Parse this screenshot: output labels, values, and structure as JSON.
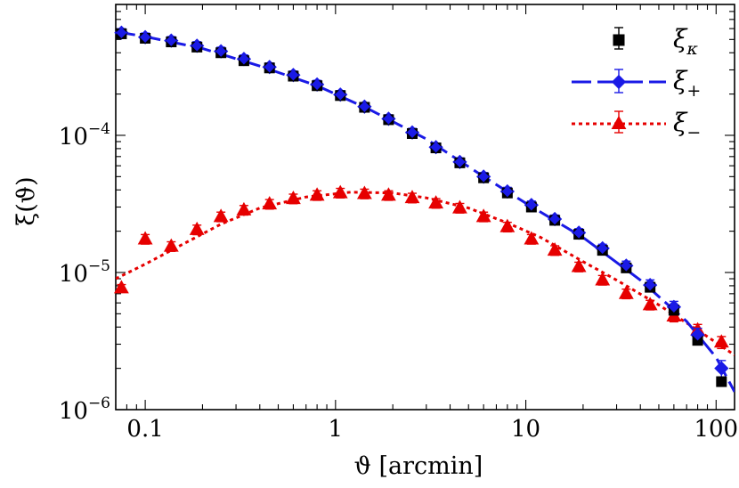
{
  "chart_data": {
    "type": "scatter",
    "xlabel": "ϑ [arcmin]",
    "ylabel": "ξ(ϑ)",
    "xscale": "log",
    "yscale": "log",
    "xlim": [
      0.07,
      125
    ],
    "ylim": [
      1e-06,
      0.0009
    ],
    "x_ticks": [
      {
        "value": 0.1,
        "label": "0.1"
      },
      {
        "value": 1,
        "label": "1"
      },
      {
        "value": 10,
        "label": "10"
      },
      {
        "value": 100,
        "label": "100"
      }
    ],
    "y_ticks": [
      {
        "value": 1e-06,
        "base": "10",
        "exp": "−6"
      },
      {
        "value": 1e-05,
        "base": "10",
        "exp": "−5"
      },
      {
        "value": 0.0001,
        "base": "10",
        "exp": "−4"
      }
    ],
    "legend": {
      "position": "top-right",
      "entries": [
        {
          "key": "kappa",
          "base": "ξ",
          "sub": "κ"
        },
        {
          "key": "plus",
          "base": "ξ",
          "sub": "+"
        },
        {
          "key": "minus",
          "base": "ξ",
          "sub": "−"
        }
      ]
    },
    "series": [
      {
        "key": "kappa",
        "name": "ξκ",
        "marker": "square",
        "color": "#000000",
        "x": [
          0.075,
          0.1,
          0.137,
          0.187,
          0.25,
          0.33,
          0.45,
          0.6,
          0.8,
          1.06,
          1.42,
          1.9,
          2.53,
          3.37,
          4.5,
          6.0,
          8.0,
          10.7,
          14.2,
          19.0,
          25.3,
          33.7,
          45.0,
          60.0,
          80.0,
          106.7
        ],
        "y": [
          0.00055,
          0.00051,
          0.00048,
          0.00044,
          0.0004,
          0.00035,
          0.00031,
          0.00027,
          0.00023,
          0.000195,
          0.00016,
          0.00013,
          0.000103,
          8.1e-05,
          6.3e-05,
          4.9e-05,
          3.8e-05,
          3e-05,
          2.4e-05,
          1.9e-05,
          1.45e-05,
          1.08e-05,
          7.8e-06,
          5.3e-06,
          3.2e-06,
          1.6e-06
        ]
      },
      {
        "key": "plus",
        "name": "ξ+",
        "marker": "diamond",
        "color": "#1a1ae6",
        "x": [
          0.075,
          0.1,
          0.137,
          0.187,
          0.25,
          0.33,
          0.45,
          0.6,
          0.8,
          1.06,
          1.42,
          1.9,
          2.53,
          3.37,
          4.5,
          6.0,
          8.0,
          10.7,
          14.2,
          19.0,
          25.3,
          33.7,
          45.0,
          60.0,
          80.0,
          106.7
        ],
        "y": [
          0.00056,
          0.00052,
          0.00049,
          0.00045,
          0.00041,
          0.00036,
          0.000315,
          0.000275,
          0.000235,
          0.000198,
          0.000162,
          0.000132,
          0.000105,
          8.2e-05,
          6.4e-05,
          5e-05,
          3.9e-05,
          3.1e-05,
          2.45e-05,
          1.95e-05,
          1.5e-05,
          1.12e-05,
          8.1e-06,
          5.6e-06,
          3.5e-06,
          2e-06
        ],
        "err": [
          0.07,
          0.07,
          0.07,
          0.07,
          0.07,
          0.07,
          0.07,
          0.07,
          0.07,
          0.07,
          0.07,
          0.07,
          0.07,
          0.07,
          0.07,
          0.07,
          0.07,
          0.07,
          0.07,
          0.07,
          0.07,
          0.08,
          0.09,
          0.1,
          0.12,
          0.14
        ],
        "fit_x": [
          0.07,
          0.1,
          0.2,
          0.4,
          0.8,
          1.5,
          3,
          6,
          10,
          20,
          40,
          70,
          100,
          125
        ],
        "fit_y": [
          0.00057,
          0.000525,
          0.00043,
          0.00032,
          0.00023,
          0.000155,
          9.4e-05,
          5e-05,
          3.2e-05,
          1.8e-05,
          8.8e-06,
          4.4e-06,
          2.4e-06,
          1.35e-06
        ]
      },
      {
        "key": "minus",
        "name": "ξ−",
        "marker": "triangle",
        "color": "#e60000",
        "x": [
          0.075,
          0.1,
          0.137,
          0.187,
          0.25,
          0.33,
          0.45,
          0.6,
          0.8,
          1.06,
          1.42,
          1.9,
          2.53,
          3.37,
          4.5,
          6.0,
          8.0,
          10.7,
          14.2,
          19.0,
          25.3,
          33.7,
          45.0,
          60.0,
          80.0,
          106.7
        ],
        "y": [
          7.7e-06,
          1.75e-05,
          1.55e-05,
          2.05e-05,
          2.55e-05,
          2.85e-05,
          3.15e-05,
          3.45e-05,
          3.65e-05,
          3.8e-05,
          3.75e-05,
          3.65e-05,
          3.5e-05,
          3.2e-05,
          2.95e-05,
          2.55e-05,
          2.15e-05,
          1.75e-05,
          1.45e-05,
          1.1e-05,
          8.8e-06,
          7e-06,
          5.8e-06,
          4.8e-06,
          3.8e-06,
          3.1e-06
        ],
        "err": [
          0.06,
          0.08,
          0.08,
          0.08,
          0.08,
          0.08,
          0.08,
          0.08,
          0.08,
          0.08,
          0.08,
          0.08,
          0.08,
          0.08,
          0.08,
          0.08,
          0.08,
          0.08,
          0.08,
          0.08,
          0.08,
          0.08,
          0.08,
          0.09,
          0.1,
          0.1
        ],
        "fit_x": [
          0.07,
          0.1,
          0.15,
          0.25,
          0.4,
          0.7,
          1.2,
          2,
          3,
          5,
          8,
          12,
          20,
          30,
          50,
          80,
          125
        ],
        "fit_y": [
          9e-06,
          1.15e-05,
          1.55e-05,
          2.25e-05,
          2.95e-05,
          3.55e-05,
          3.85e-05,
          3.8e-05,
          3.5e-05,
          2.95e-05,
          2.3e-05,
          1.8e-05,
          1.2e-05,
          8.8e-06,
          5.8e-06,
          3.8e-06,
          2.5e-06
        ]
      }
    ]
  }
}
